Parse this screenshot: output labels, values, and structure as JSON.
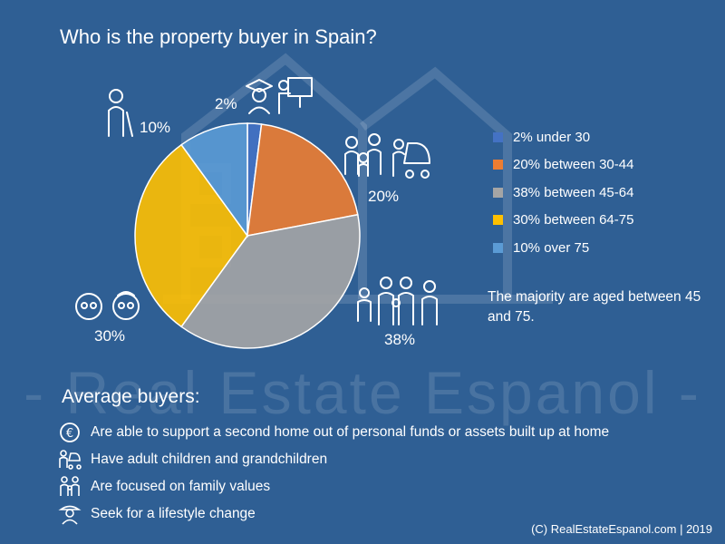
{
  "title": "Who is the property buyer in Spain?",
  "chart_data": {
    "type": "pie",
    "title": "Who is the property buyer in Spain?",
    "categories": [
      "under 30",
      "between 30-44",
      "between 45-64",
      "between 64-75",
      "over 75"
    ],
    "values": [
      2,
      20,
      38,
      30,
      10
    ],
    "slice_labels": [
      "2%",
      "20%",
      "38%",
      "30%",
      "10%"
    ],
    "legend_labels": [
      "2% under 30",
      "20% between 30-44",
      "38% between 45-64",
      "30% between 64-75",
      "10% over 75"
    ],
    "colors": [
      "#4472c4",
      "#ed7d31",
      "#a5a5a5",
      "#ffc000",
      "#5b9bd5"
    ],
    "legend_position": "right"
  },
  "note": "The majority are aged between 45 and 75.",
  "buyers": {
    "heading": "Average buyers:",
    "items": [
      {
        "text": "Are able to support a second home out of personal funds or assets built up at home",
        "icon": "euro-coin-icon"
      },
      {
        "text": "Have adult children and grandchildren",
        "icon": "family-stroller-icon"
      },
      {
        "text": "Are focused on family values",
        "icon": "family-icon"
      },
      {
        "text": "Seek for a lifestyle change",
        "icon": "traveler-icon"
      }
    ]
  },
  "watermark": "- Real Estate Espanol -",
  "copyright": "(C) RealEstateEspanol.com | 2019"
}
